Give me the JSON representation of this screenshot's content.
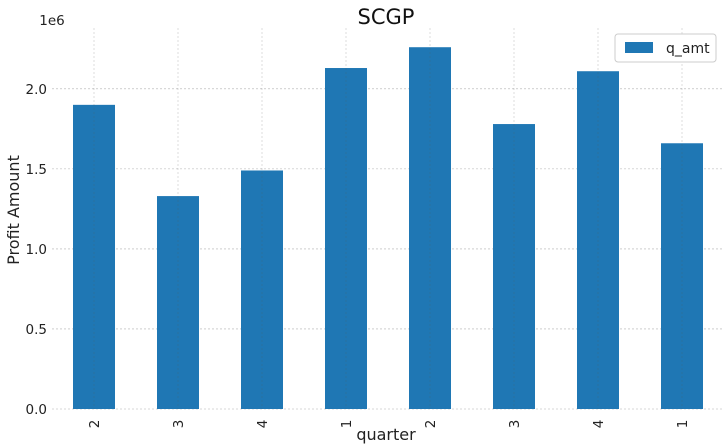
{
  "chart_data": {
    "type": "bar",
    "title": "SCGP",
    "xlabel": "quarter",
    "ylabel": "Profit Amount",
    "y_multiplier_label": "1e6",
    "categories": [
      "2",
      "3",
      "4",
      "1",
      "2",
      "3",
      "4",
      "1"
    ],
    "series": [
      {
        "name": "q_amt",
        "values": [
          1900000,
          1330000,
          1490000,
          2130000,
          2260000,
          1780000,
          2110000,
          1660000
        ]
      }
    ],
    "ylim": [
      0,
      2380000
    ],
    "y_ticks": [
      0,
      500000,
      1000000,
      1500000,
      2000000
    ],
    "y_tick_labels": [
      "0.0",
      "0.5",
      "1.0",
      "1.5",
      "2.0"
    ],
    "grid": true,
    "legend_position": "top-right",
    "bar_color": "#1f77b4",
    "background": "#ffffff"
  }
}
